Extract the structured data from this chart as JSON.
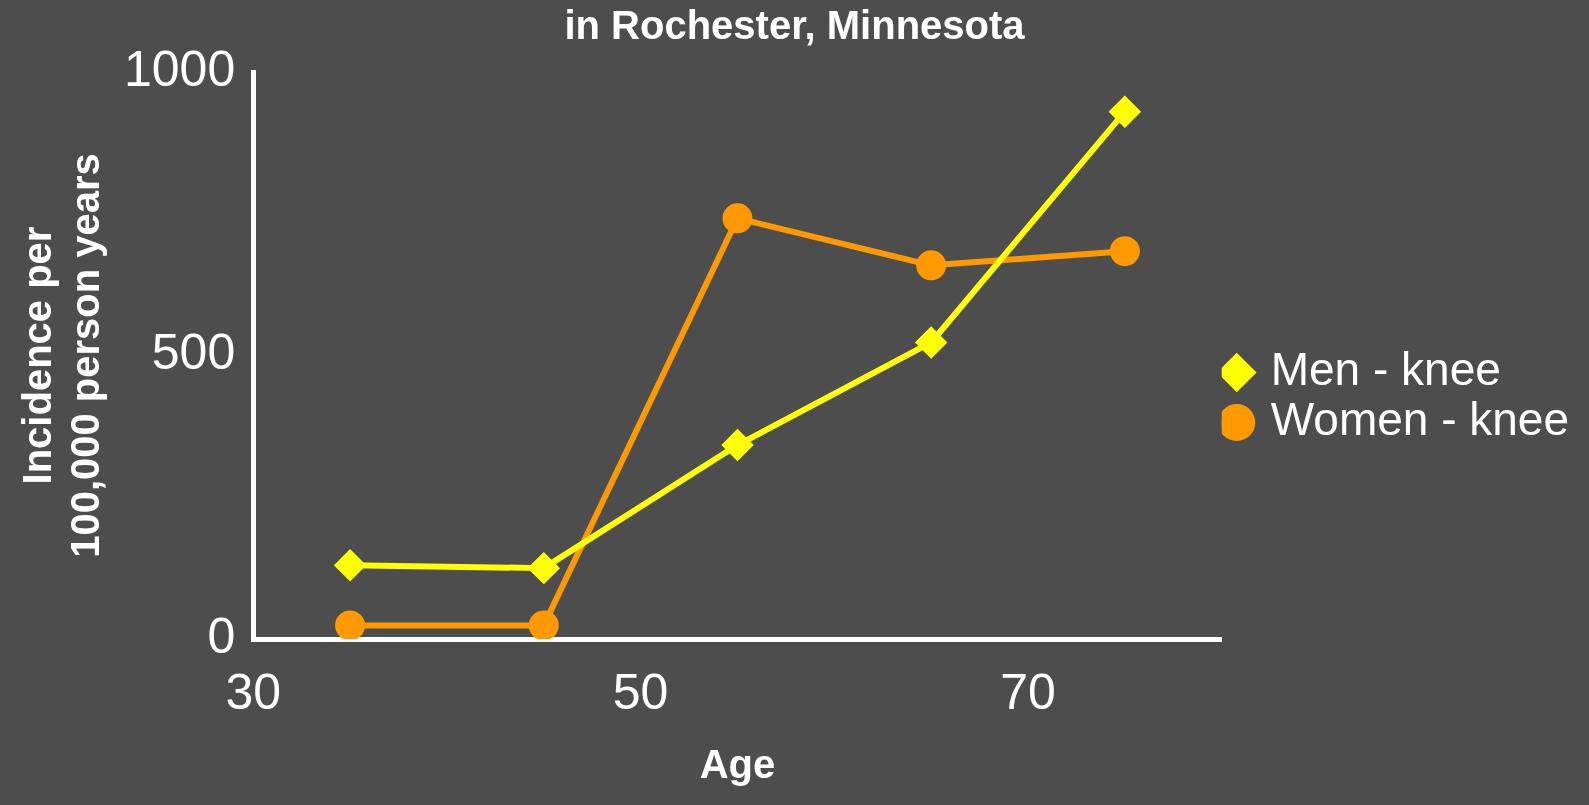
{
  "chart_data": {
    "type": "line",
    "title": "in Rochester, Minnesota",
    "xlabel": "Age",
    "ylabel": "Incidence per 100,000 person years",
    "x": [
      35,
      45,
      55,
      65,
      75
    ],
    "series": [
      {
        "name": "Men - knee",
        "color": "#ffff00",
        "marker": "diamond",
        "values": [
          130,
          125,
          342,
          523,
          930
        ]
      },
      {
        "name": "Women - knee",
        "color": "#ff9900",
        "marker": "circle",
        "values": [
          24,
          24,
          742,
          659,
          684
        ]
      }
    ],
    "xlim": [
      30,
      80
    ],
    "xticks": [
      30,
      50,
      70
    ],
    "ylim": [
      0,
      1000
    ],
    "yticks": [
      0,
      500,
      1000
    ],
    "grid": false,
    "legend": "right",
    "line_style": "solid"
  }
}
